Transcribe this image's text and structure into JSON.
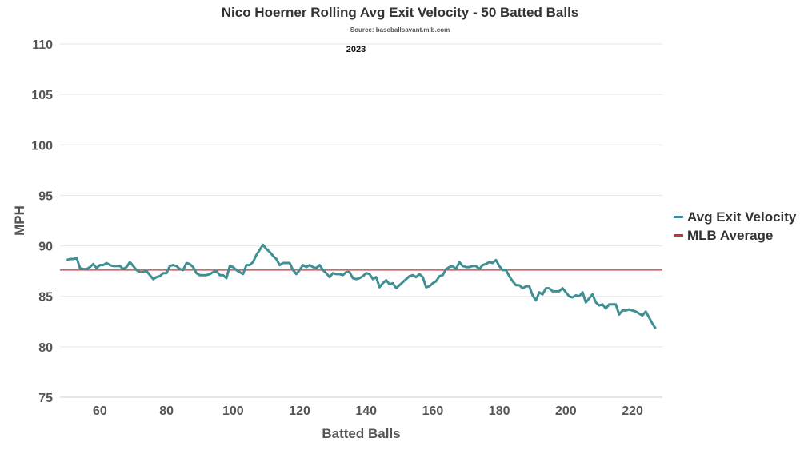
{
  "chart_data": {
    "type": "line",
    "title": "Nico Hoerner Rolling Avg Exit Velocity - 50 Batted Balls",
    "source": "Source: baseballsavant.mlb.com",
    "subtitle": "2023",
    "xlabel": "Batted Balls",
    "ylabel": "MPH",
    "xlim": [
      48,
      229
    ],
    "ylim": [
      75,
      110
    ],
    "xticks": [
      "60",
      "80",
      "100",
      "120",
      "140",
      "160",
      "180",
      "200",
      "220"
    ],
    "yticks": [
      "75",
      "80",
      "85",
      "90",
      "95",
      "100",
      "105",
      "110"
    ],
    "grid": true,
    "legend_position": "right",
    "series": [
      {
        "name": "Avg Exit Velocity",
        "color": "#3f8f94",
        "x_start": 50,
        "values": [
          88.6,
          88.7,
          88.7,
          88.8,
          87.8,
          87.7,
          87.7,
          87.9,
          88.2,
          87.8,
          88.1,
          88.1,
          88.3,
          88.1,
          88.0,
          88.0,
          88.0,
          87.7,
          87.9,
          88.4,
          88.0,
          87.6,
          87.4,
          87.4,
          87.5,
          87.1,
          86.7,
          86.9,
          87.0,
          87.3,
          87.3,
          88.0,
          88.1,
          88.0,
          87.7,
          87.6,
          88.3,
          88.2,
          87.9,
          87.3,
          87.1,
          87.1,
          87.1,
          87.2,
          87.4,
          87.5,
          87.1,
          87.1,
          86.8,
          88.0,
          87.9,
          87.6,
          87.4,
          87.2,
          88.1,
          88.1,
          88.4,
          89.1,
          89.6,
          90.1,
          89.7,
          89.4,
          89.0,
          88.7,
          88.1,
          88.3,
          88.3,
          88.3,
          87.6,
          87.2,
          87.6,
          88.1,
          87.9,
          88.1,
          87.9,
          87.8,
          88.1,
          87.6,
          87.3,
          86.9,
          87.3,
          87.2,
          87.2,
          87.1,
          87.4,
          87.4,
          86.8,
          86.7,
          86.8,
          87.0,
          87.3,
          87.2,
          86.7,
          86.9,
          85.9,
          86.3,
          86.6,
          86.2,
          86.3,
          85.8,
          86.1,
          86.4,
          86.7,
          87.0,
          87.1,
          86.9,
          87.2,
          86.9,
          85.9,
          86.0,
          86.3,
          86.5,
          87.0,
          87.1,
          87.7,
          87.9,
          88.0,
          87.7,
          88.4,
          88.0,
          87.9,
          87.9,
          88.0,
          88.0,
          87.7,
          88.1,
          88.2,
          88.4,
          88.3,
          88.6,
          88.0,
          87.6,
          87.6,
          87.0,
          86.5,
          86.1,
          86.1,
          85.8,
          86.0,
          86.0,
          85.1,
          84.6,
          85.4,
          85.2,
          85.8,
          85.8,
          85.5,
          85.5,
          85.5,
          85.8,
          85.4,
          85.0,
          84.9,
          85.1,
          85.0,
          85.4,
          84.4,
          84.8,
          85.2,
          84.4,
          84.1,
          84.2,
          83.8,
          84.2,
          84.2,
          84.2,
          83.2,
          83.6,
          83.6,
          83.7,
          83.6,
          83.5,
          83.3,
          83.1,
          83.5,
          82.9,
          82.3,
          81.8
        ]
      },
      {
        "name": "MLB Average",
        "color": "#c0392b",
        "value": 87.6
      }
    ]
  }
}
